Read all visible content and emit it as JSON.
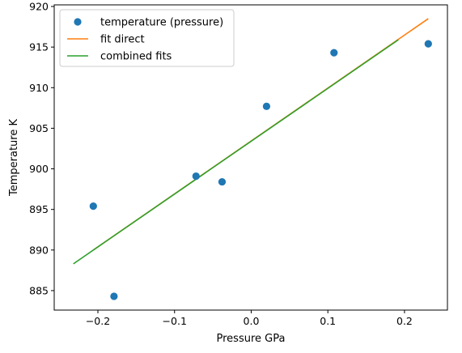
{
  "chart_data": {
    "type": "scatter",
    "title": "",
    "xlabel": "Pressure GPa",
    "ylabel": "Temperature K",
    "xlim": [
      -0.257,
      0.256
    ],
    "ylim": [
      882.6,
      920.2
    ],
    "xticks": [
      -0.2,
      -0.1,
      0.0,
      0.1,
      0.2
    ],
    "xtick_labels": [
      "−0.2",
      "−0.1",
      "0.0",
      "0.1",
      "0.2"
    ],
    "yticks": [
      885,
      890,
      895,
      900,
      905,
      910,
      915,
      920
    ],
    "ytick_labels": [
      "885",
      "890",
      "895",
      "900",
      "905",
      "910",
      "915",
      "920"
    ],
    "grid": false,
    "legend_position": "top-left",
    "series": [
      {
        "name": "temperature (pressure)",
        "kind": "scatter",
        "color": "#1f77b4",
        "x": [
          -0.206,
          -0.179,
          -0.072,
          -0.038,
          0.02,
          0.108,
          0.231
        ],
        "y": [
          895.4,
          884.3,
          899.1,
          898.4,
          907.7,
          914.3,
          915.4
        ]
      },
      {
        "name": "fit direct",
        "kind": "line",
        "color": "#ff7f0e",
        "x": [
          -0.206,
          0.231
        ],
        "y": [
          890.0,
          918.5
        ]
      },
      {
        "name": "combined fits",
        "kind": "line",
        "color": "#2ca02c",
        "x": [
          -0.232,
          0.192
        ],
        "y": [
          888.3,
          915.9
        ]
      }
    ]
  }
}
